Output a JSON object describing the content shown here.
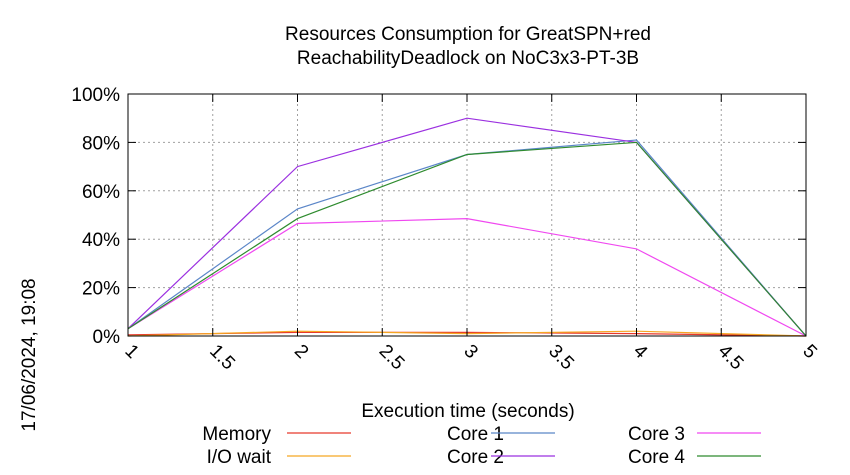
{
  "chart_data": {
    "type": "line",
    "title_lines": [
      "Resources Consumption for GreatSPN+red",
      "ReachabilityDeadlock on NoC3x3-PT-3B"
    ],
    "xlabel": "Execution time (seconds)",
    "ylabel": "",
    "side_label": "17/06/2024, 19:08",
    "xlim": [
      1,
      5
    ],
    "ylim": [
      0,
      100
    ],
    "x_ticks": [
      {
        "value": 1,
        "label": "1"
      },
      {
        "value": 1.5,
        "label": "1.5"
      },
      {
        "value": 2,
        "label": "2"
      },
      {
        "value": 2.5,
        "label": "2.5"
      },
      {
        "value": 3,
        "label": "3"
      },
      {
        "value": 3.5,
        "label": "3.5"
      },
      {
        "value": 4,
        "label": "4"
      },
      {
        "value": 4.5,
        "label": "4.5"
      },
      {
        "value": 5,
        "label": "5"
      }
    ],
    "y_ticks": [
      {
        "value": 0,
        "label": "0%"
      },
      {
        "value": 20,
        "label": "20%"
      },
      {
        "value": 40,
        "label": "40%"
      },
      {
        "value": 60,
        "label": "60%"
      },
      {
        "value": 80,
        "label": "80%"
      },
      {
        "value": 100,
        "label": "100%"
      }
    ],
    "grid": true,
    "legend_position": "bottom",
    "x": [
      1,
      2,
      3,
      4,
      5
    ],
    "series": [
      {
        "name": "Memory",
        "color": "#e8392c",
        "values": [
          0.5,
          1.5,
          1.5,
          1,
          0
        ]
      },
      {
        "name": "I/O wait",
        "color": "#f5a623",
        "values": [
          0,
          2,
          1,
          2,
          0
        ]
      },
      {
        "name": "Core 1",
        "color": "#5b86c8",
        "values": [
          3,
          52.5,
          75,
          81,
          0
        ]
      },
      {
        "name": "Core 2",
        "color": "#9b30e0",
        "values": [
          3,
          70,
          90,
          80,
          0
        ]
      },
      {
        "name": "Core 3",
        "color": "#f048f0",
        "values": [
          3,
          46.5,
          48.5,
          36,
          0
        ]
      },
      {
        "name": "Core 4",
        "color": "#2e8b2e",
        "values": [
          3,
          48.5,
          75,
          80,
          0
        ]
      }
    ]
  }
}
